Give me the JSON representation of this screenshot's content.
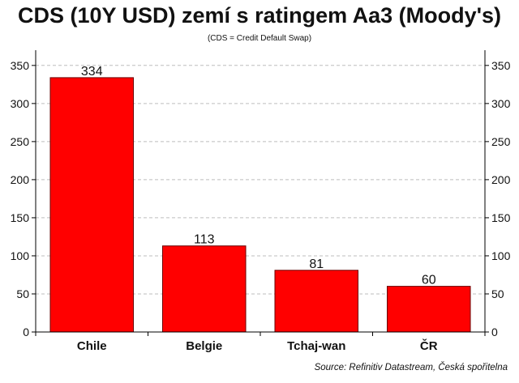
{
  "chart_data": {
    "type": "bar",
    "title": "CDS (10Y USD) zemí s ratingem Aa3 (Moody's)",
    "subtitle": "(CDS = Credit Default Swap)",
    "source": "Source: Refinitiv Datastream, Česká spořitelna",
    "categories": [
      "Chile",
      "Belgie",
      "Tchaj-wan",
      "ČR"
    ],
    "values": [
      334,
      113,
      81,
      60
    ],
    "data_labels": [
      "334",
      "113",
      "81",
      "60"
    ],
    "yticks": [
      0,
      50,
      100,
      150,
      200,
      250,
      300,
      350
    ],
    "ylim": [
      0,
      370
    ],
    "bar_color": "#ff0000",
    "grid": true,
    "secondary_axis": true
  }
}
